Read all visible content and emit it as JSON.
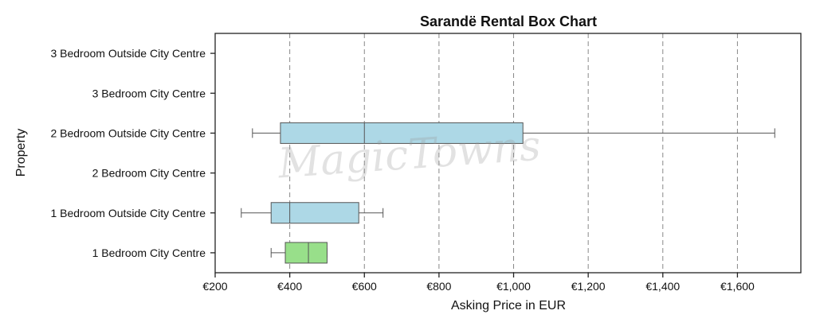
{
  "chart_data": {
    "type": "box",
    "orientation": "horizontal",
    "title": "Sarandë Rental Box Chart",
    "xlabel": "Asking Price in EUR",
    "ylabel": "Property",
    "xlim": [
      200,
      1770
    ],
    "x_ticks": [
      200,
      400,
      600,
      800,
      1000,
      1200,
      1400,
      1600
    ],
    "x_tick_labels": [
      "€200",
      "€400",
      "€600",
      "€800",
      "€1,000",
      "€1,200",
      "€1,400",
      "€1,600"
    ],
    "grid": "vertical dashed",
    "categories": [
      "3 Bedroom Outside City Centre",
      "3 Bedroom City Centre",
      "2 Bedroom Outside City Centre",
      "2 Bedroom City Centre",
      "1 Bedroom Outside City Centre",
      "1 Bedroom City Centre"
    ],
    "boxes": [
      null,
      null,
      {
        "whisker_low": 300,
        "q1": 375,
        "median": 600,
        "q3": 1025,
        "whisker_high": 1700,
        "color": "#add8e6"
      },
      null,
      {
        "whisker_low": 270,
        "q1": 350,
        "median": 400,
        "q3": 585,
        "whisker_high": 650,
        "color": "#add8e6"
      },
      {
        "whisker_low": 350,
        "q1": 388,
        "median": 450,
        "q3": 500,
        "whisker_high": 500,
        "color": "#98df8a"
      }
    ]
  },
  "watermark": "MagicTowns"
}
